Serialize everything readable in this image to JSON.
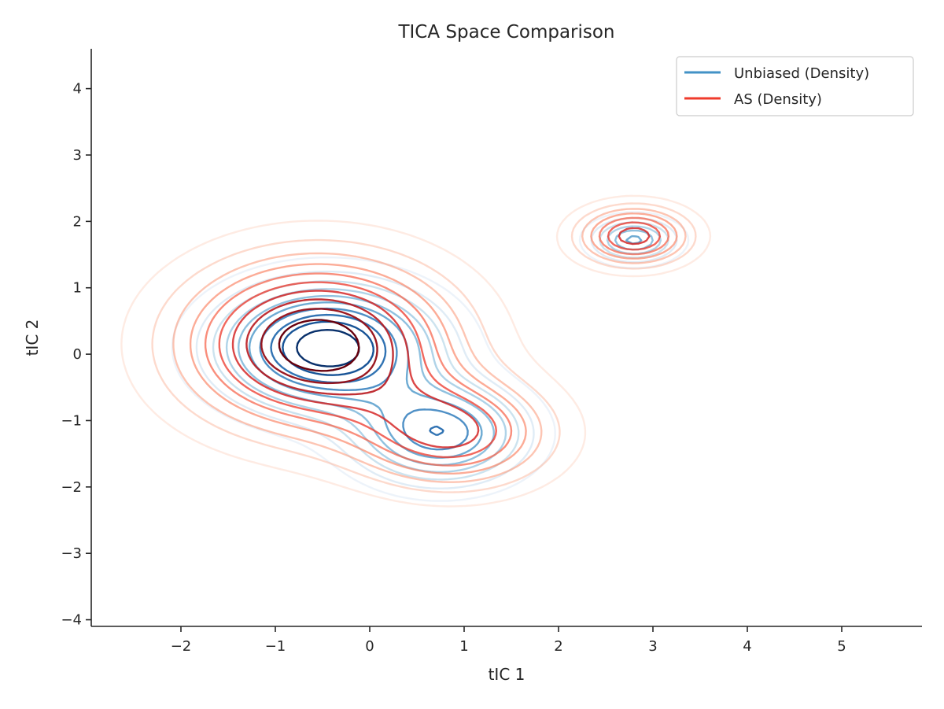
{
  "chart_data": {
    "type": "contour",
    "title": "TICA Space Comparison",
    "xlabel": "tIC 1",
    "ylabel": "tIC 2",
    "xlim": [
      -2.95,
      5.85
    ],
    "ylim": [
      -4.1,
      4.6
    ],
    "xticks": [
      -2,
      -1,
      0,
      1,
      2,
      3,
      4,
      5
    ],
    "yticks": [
      -4,
      -3,
      -2,
      -1,
      0,
      1,
      2,
      3,
      4
    ],
    "xtick_labels": [
      "−2",
      "−1",
      "0",
      "1",
      "2",
      "3",
      "4",
      "5"
    ],
    "ytick_labels": [
      "−4",
      "−3",
      "−2",
      "−1",
      "0",
      "1",
      "2",
      "3",
      "4"
    ],
    "grid": false,
    "legend_position": "top-right",
    "series": [
      {
        "name": "Unbiased (Density)",
        "legend_color": "#4292c6",
        "colormap": "Blues",
        "levels": 10,
        "components": [
          {
            "center": [
              -0.45,
              0.1
            ],
            "sigma": [
              0.75,
              0.62
            ],
            "weight": 0.62
          },
          {
            "center": [
              0.75,
              -1.2
            ],
            "sigma": [
              0.6,
              0.5
            ],
            "weight": 0.28
          },
          {
            "center": [
              2.8,
              1.72
            ],
            "sigma": [
              0.3,
              0.22
            ],
            "weight": 0.05
          }
        ]
      },
      {
        "name": "AS (Density)",
        "legend_color": "#ef3b2c",
        "colormap": "Reds",
        "levels": 10,
        "components": [
          {
            "center": [
              -0.55,
              0.15
            ],
            "sigma": [
              0.95,
              0.85
            ],
            "weight": 0.68
          },
          {
            "center": [
              0.9,
              -1.2
            ],
            "sigma": [
              0.7,
              0.55
            ],
            "weight": 0.2
          },
          {
            "center": [
              2.8,
              1.78
            ],
            "sigma": [
              0.4,
              0.3
            ],
            "weight": 0.07
          }
        ]
      }
    ]
  }
}
